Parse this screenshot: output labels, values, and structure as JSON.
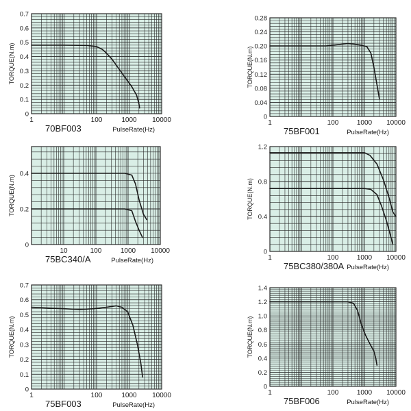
{
  "style": {
    "plot_bg": "#d9eee6",
    "grid": "#2a2a2a",
    "curve": "#1a1a1a",
    "text": "#1a1a1a"
  },
  "chart_data": [
    {
      "type": "line",
      "model": "70BF003",
      "xlabel": "PulseRate(Hz)",
      "ylabel": "TORQUE(N.m)",
      "x_scale": "log",
      "xlim": [
        1,
        10000
      ],
      "x_ticks": [
        1,
        100,
        1000,
        10000
      ],
      "x_tick_labels": [
        "1",
        "100",
        "1000",
        "10000"
      ],
      "ylim": [
        0,
        0.7
      ],
      "y_ticks": [
        0,
        0.1,
        0.2,
        0.3,
        0.4,
        0.5,
        0.6,
        0.7
      ],
      "y_tick_labels": [
        "0",
        "0.1",
        "0.2",
        "0.3",
        "0.4",
        "0.5",
        "0.6",
        "0.7"
      ],
      "series": [
        {
          "points": [
            [
              1,
              0.48
            ],
            [
              10,
              0.48
            ],
            [
              50,
              0.478
            ],
            [
              100,
              0.47
            ],
            [
              150,
              0.45
            ],
            [
              200,
              0.425
            ],
            [
              300,
              0.38
            ],
            [
              500,
              0.31
            ],
            [
              800,
              0.245
            ],
            [
              1200,
              0.19
            ],
            [
              1700,
              0.13
            ],
            [
              2000,
              0.07
            ],
            [
              2100,
              0.04
            ]
          ]
        }
      ]
    },
    {
      "type": "line",
      "model": "75BF001",
      "xlabel": "PulseRate(Hz)",
      "ylabel": "TORQUE(N.m)",
      "x_scale": "log",
      "xlim": [
        1,
        10000
      ],
      "x_ticks": [
        1,
        100,
        1000,
        10000
      ],
      "x_tick_labels": [
        "1",
        "100",
        "1000",
        "10000"
      ],
      "ylim": [
        0,
        0.28
      ],
      "y_ticks": [
        0,
        0.04,
        0.08,
        0.12,
        0.16,
        0.2,
        0.24,
        0.28
      ],
      "y_tick_labels": [
        "0",
        "0.04",
        "0.08",
        "0.12",
        "0.16",
        "0.20",
        "0.24",
        "0.28"
      ],
      "series": [
        {
          "points": [
            [
              1,
              0.2
            ],
            [
              60,
              0.2
            ],
            [
              150,
              0.204
            ],
            [
              300,
              0.207
            ],
            [
              500,
              0.205
            ],
            [
              800,
              0.202
            ],
            [
              1200,
              0.198
            ],
            [
              1600,
              0.18
            ],
            [
              2000,
              0.14
            ],
            [
              2500,
              0.09
            ],
            [
              3000,
              0.05
            ]
          ]
        }
      ]
    },
    {
      "type": "line",
      "model": "75BC340/A",
      "xlabel": "PulseRate(Hz)",
      "ylabel": "TORQUE(N.m)",
      "x_scale": "log",
      "xlim": [
        1,
        10000
      ],
      "x_ticks": [
        10,
        100,
        1000,
        10000
      ],
      "x_tick_labels": [
        "10",
        "100",
        "1000",
        "10000"
      ],
      "ylim": [
        0,
        0.55
      ],
      "y_ticks": [
        0,
        0.2,
        0.4
      ],
      "y_tick_labels": [
        "0",
        "0.2",
        "0.4"
      ],
      "series": [
        {
          "points": [
            [
              1,
              0.4
            ],
            [
              100,
              0.4
            ],
            [
              800,
              0.4
            ],
            [
              1300,
              0.39
            ],
            [
              1700,
              0.34
            ],
            [
              2200,
              0.25
            ],
            [
              3000,
              0.17
            ],
            [
              3800,
              0.14
            ]
          ]
        },
        {
          "points": [
            [
              1,
              0.2
            ],
            [
              100,
              0.2
            ],
            [
              800,
              0.2
            ],
            [
              1300,
              0.19
            ],
            [
              1700,
              0.13
            ],
            [
              2200,
              0.08
            ],
            [
              2800,
              0.04
            ]
          ]
        }
      ]
    },
    {
      "type": "line",
      "model": "75BC380/380A",
      "xlabel": "PulseRate(Hz)",
      "ylabel": "TORQUE(N.m)",
      "x_scale": "log",
      "xlim": [
        1,
        10000
      ],
      "x_ticks": [
        1,
        100,
        1000,
        10000
      ],
      "x_tick_labels": [
        "1",
        "100",
        "1000",
        "10000"
      ],
      "ylim": [
        0,
        1.2
      ],
      "y_ticks": [
        0,
        0.4,
        0.8,
        1.2
      ],
      "y_tick_labels": [
        "0",
        "0.4",
        "0.8",
        "1.2"
      ],
      "series": [
        {
          "points": [
            [
              1,
              1.13
            ],
            [
              100,
              1.13
            ],
            [
              1000,
              1.13
            ],
            [
              1500,
              1.1
            ],
            [
              2500,
              1.0
            ],
            [
              4000,
              0.82
            ],
            [
              6000,
              0.62
            ],
            [
              8000,
              0.45
            ],
            [
              10000,
              0.4
            ]
          ]
        },
        {
          "points": [
            [
              1,
              0.72
            ],
            [
              100,
              0.72
            ],
            [
              1000,
              0.72
            ],
            [
              1600,
              0.71
            ],
            [
              2500,
              0.65
            ],
            [
              3500,
              0.52
            ],
            [
              5000,
              0.35
            ],
            [
              6500,
              0.2
            ],
            [
              8000,
              0.08
            ]
          ]
        }
      ]
    },
    {
      "type": "line",
      "model": "75BF003",
      "xlabel": "PulseRate(Hz)",
      "ylabel": "TORQUE(N.m)",
      "x_scale": "log",
      "xlim": [
        1,
        10000
      ],
      "x_ticks": [
        1,
        100,
        1000,
        10000
      ],
      "x_tick_labels": [
        "1",
        "100",
        "1000",
        "10000"
      ],
      "ylim": [
        0,
        0.7
      ],
      "y_ticks": [
        0,
        0.1,
        0.2,
        0.3,
        0.4,
        0.5,
        0.6,
        0.7
      ],
      "y_tick_labels": [
        "0",
        "0.1",
        "0.2",
        "0.3",
        "0.4",
        "0.5",
        "0.6",
        "0.7"
      ],
      "series": [
        {
          "points": [
            [
              1,
              0.55
            ],
            [
              10,
              0.54
            ],
            [
              30,
              0.535
            ],
            [
              80,
              0.54
            ],
            [
              200,
              0.55
            ],
            [
              400,
              0.56
            ],
            [
              600,
              0.55
            ],
            [
              900,
              0.52
            ],
            [
              1300,
              0.43
            ],
            [
              1800,
              0.3
            ],
            [
              2300,
              0.17
            ],
            [
              2600,
              0.08
            ]
          ]
        }
      ]
    },
    {
      "type": "line",
      "model": "75BF006",
      "xlabel": "PulseRate(Hz)",
      "ylabel": "TORQUE(N.m)",
      "x_scale": "log",
      "xlim": [
        1,
        10000
      ],
      "x_ticks": [
        1,
        100,
        1000,
        10000
      ],
      "x_tick_labels": [
        "1",
        "100",
        "1000",
        "10000"
      ],
      "ylim": [
        0,
        1.4
      ],
      "y_ticks": [
        0,
        0.2,
        0.4,
        0.6,
        0.8,
        1.0,
        1.2,
        1.4
      ],
      "y_tick_labels": [
        "0",
        "0.2",
        "0.4",
        "0.6",
        "0.8",
        "1.0",
        "1.2",
        "1.4"
      ],
      "series": [
        {
          "points": [
            [
              1,
              1.2
            ],
            [
              100,
              1.2
            ],
            [
              300,
              1.2
            ],
            [
              450,
              1.18
            ],
            [
              600,
              1.08
            ],
            [
              800,
              0.88
            ],
            [
              1100,
              0.72
            ],
            [
              1500,
              0.6
            ],
            [
              2000,
              0.5
            ],
            [
              2300,
              0.4
            ],
            [
              2500,
              0.3
            ]
          ]
        }
      ]
    }
  ]
}
